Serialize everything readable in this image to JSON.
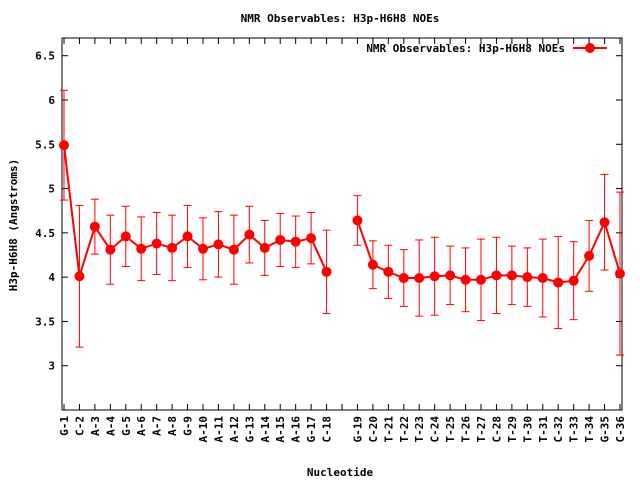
{
  "chart_data": {
    "type": "line",
    "title": "NMR Observables: H3p-H6H8 NOEs",
    "xlabel": "Nucleotide",
    "ylabel": "H3p-H6H8 (Angstroms)",
    "ylim": [
      2.5,
      6.7
    ],
    "yticks": [
      3,
      3.5,
      4,
      4.5,
      5,
      5.5,
      6,
      6.5
    ],
    "ytick_labels": [
      "3",
      "3.5",
      "4",
      "4.5",
      "5",
      "5.5",
      "6",
      "6.5"
    ],
    "categories": [
      "G-1",
      "C-2",
      "A-3",
      "A-4",
      "G-5",
      "A-6",
      "A-7",
      "A-8",
      "G-9",
      "A-10",
      "A-11",
      "A-12",
      "G-13",
      "A-14",
      "A-15",
      "A-16",
      "G-17",
      "C-18",
      "",
      "G-19",
      "C-20",
      "T-21",
      "T-22",
      "T-23",
      "C-24",
      "T-25",
      "T-26",
      "T-27",
      "C-28",
      "T-29",
      "T-30",
      "T-31",
      "C-32",
      "T-33",
      "T-34",
      "G-35",
      "C-36"
    ],
    "legend_position": "top-right",
    "grid": false,
    "series": [
      {
        "name": "NMR Observables: H3p-H6H8 NOEs",
        "color": "#ff0000",
        "values": [
          5.49,
          4.01,
          4.57,
          4.31,
          4.46,
          4.32,
          4.38,
          4.33,
          4.46,
          4.32,
          4.37,
          4.31,
          4.48,
          4.33,
          4.42,
          4.4,
          4.44,
          4.06,
          null,
          4.64,
          4.14,
          4.06,
          3.99,
          3.99,
          4.01,
          4.02,
          3.97,
          3.97,
          4.02,
          4.02,
          4.0,
          3.99,
          3.94,
          3.96,
          4.24,
          4.62,
          4.04
        ],
        "error": [
          0.62,
          0.8,
          0.31,
          0.39,
          0.34,
          0.36,
          0.35,
          0.37,
          0.35,
          0.35,
          0.37,
          0.39,
          0.32,
          0.31,
          0.3,
          0.29,
          0.29,
          0.47,
          null,
          0.28,
          0.27,
          0.3,
          0.32,
          0.43,
          0.44,
          0.33,
          0.36,
          0.46,
          0.43,
          0.33,
          0.33,
          0.44,
          0.52,
          0.44,
          0.4,
          0.54,
          0.92
        ]
      }
    ]
  }
}
